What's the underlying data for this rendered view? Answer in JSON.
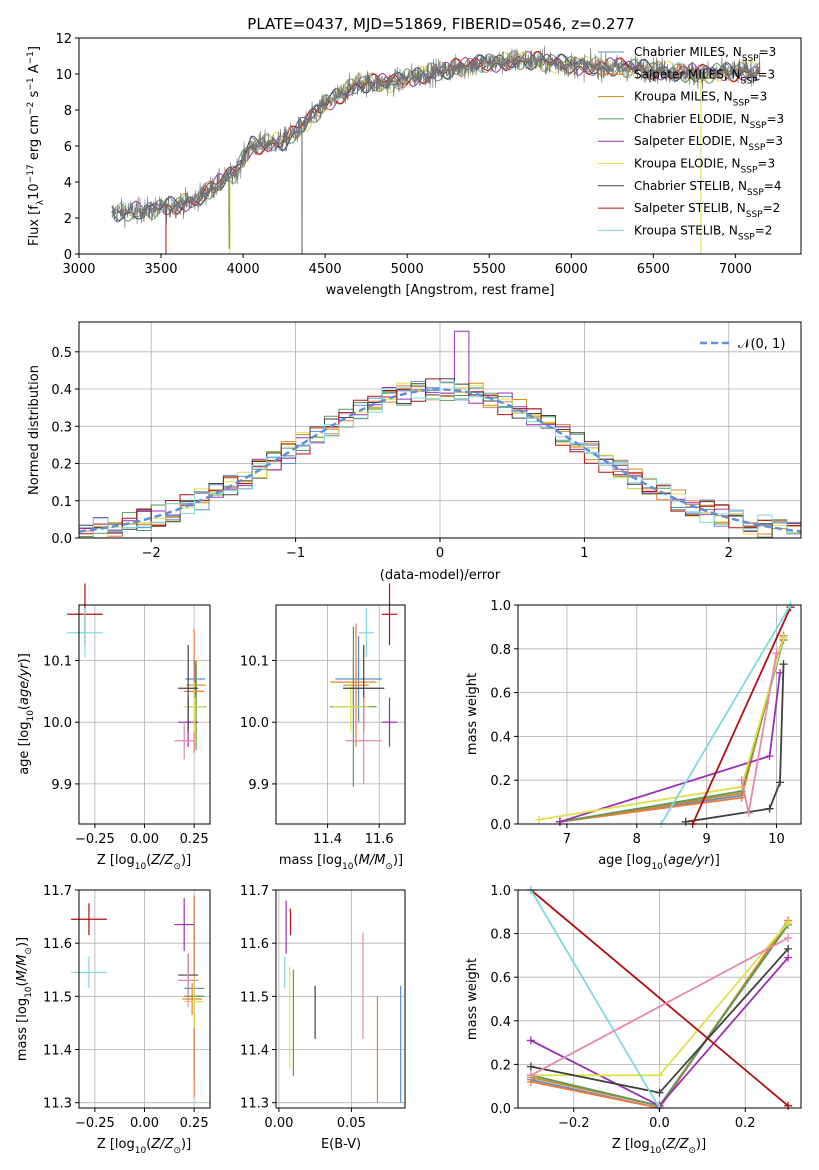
{
  "title": "PLATE=0437, MJD=51869, FIBERID=0546, z=0.277",
  "colors": {
    "chabrier_miles": "#5b8fd6",
    "salpeter_miles": "#ef7a3a",
    "kroupa_miles": "#d88b1d",
    "chabrier_elodie": "#5a9a5a",
    "salpeter_elodie": "#9a2fb5",
    "kroupa_elodie": "#e0e04a",
    "chabrier_stelib": "#404040",
    "salpeter_stelib": "#b01010",
    "kroupa_stelib": "#80d8e0",
    "extra_pink": "#e888b0",
    "extra_lime": "#b8e060",
    "extra_orange": "#e07020",
    "normal": "#5f8fd8"
  },
  "legend": [
    {
      "label": "Chabrier MILES, N",
      "sub": "SSP",
      "suffix": "=3",
      "color": "#5b8fd6"
    },
    {
      "label": "Salpeter MILES, N",
      "sub": "SSP",
      "suffix": "=3",
      "color": "#ef7a3a"
    },
    {
      "label": "Kroupa MILES, N",
      "sub": "SSP",
      "suffix": "=3",
      "color": "#d88b1d"
    },
    {
      "label": "Chabrier ELODIE, N",
      "sub": "SSP",
      "suffix": "=3",
      "color": "#5a9a5a"
    },
    {
      "label": "Salpeter ELODIE, N",
      "sub": "SSP",
      "suffix": "=3",
      "color": "#9a2fb5"
    },
    {
      "label": "Kroupa ELODIE, N",
      "sub": "SSP",
      "suffix": "=3",
      "color": "#e0e04a"
    },
    {
      "label": "Chabrier STELIB, N",
      "sub": "SSP",
      "suffix": "=4",
      "color": "#404040"
    },
    {
      "label": "Salpeter STELIB, N",
      "sub": "SSP",
      "suffix": "=2",
      "color": "#b01010"
    },
    {
      "label": "Kroupa STELIB, N",
      "sub": "SSP",
      "suffix": "=2",
      "color": "#80d8e0"
    }
  ],
  "hist_legend": "𝒩(0, 1)",
  "chart_data": [
    {
      "type": "line",
      "xlabel": "wavelength [Angstrom, rest frame]",
      "ylabel": "Flux [f_λ 10^-17 erg cm^-2 s^-1 A^-1]",
      "xlim": [
        3000,
        7400
      ],
      "ylim": [
        0,
        12
      ],
      "xticks": [
        "3000",
        "3500",
        "4000",
        "4500",
        "5000",
        "5500",
        "6000",
        "6500",
        "7000"
      ],
      "yticks": [
        "0",
        "2",
        "4",
        "6",
        "8",
        "10",
        "12"
      ],
      "spectrum_trend": [
        [
          3200,
          2.3
        ],
        [
          3500,
          2.5
        ],
        [
          3700,
          3
        ],
        [
          3950,
          4.5
        ],
        [
          4050,
          6
        ],
        [
          4250,
          6.3
        ],
        [
          4350,
          7
        ],
        [
          4500,
          8.3
        ],
        [
          4700,
          9.5
        ],
        [
          4900,
          9.5
        ],
        [
          5100,
          10
        ],
        [
          5400,
          10.5
        ],
        [
          5700,
          10.8
        ],
        [
          6000,
          10.5
        ],
        [
          6400,
          10.3
        ],
        [
          6800,
          10
        ],
        [
          7150,
          10.2
        ]
      ]
    },
    {
      "type": "line",
      "xlabel": "(data-model)/error",
      "ylabel": "Normed distribution",
      "xlim": [
        -2.5,
        2.5
      ],
      "ylim": [
        0,
        0.58
      ],
      "xticks": [
        "−2",
        "−1",
        "0",
        "1",
        "2"
      ],
      "yticks": [
        "0.0",
        "0.1",
        "0.2",
        "0.3",
        "0.4",
        "0.5"
      ],
      "normal": {
        "mu": 0,
        "sigma": 1
      }
    },
    {
      "type": "scatter",
      "xlabel": "Z [log10(Z/Z⊙)]",
      "ylabel": "age [log10(age/yr)]",
      "xlim": [
        -0.33,
        0.33
      ],
      "ylim": [
        9.835,
        10.19
      ],
      "xticks": [
        "−0.25",
        "0.00",
        "0.25"
      ],
      "yticks": [
        "9.9",
        "10.0",
        "10.1"
      ],
      "points": [
        {
          "x": 0.255,
          "y": 10.07,
          "color": "#5b8fd6"
        },
        {
          "x": 0.25,
          "y": 10.05,
          "color": "#ef7a3a"
        },
        {
          "x": 0.26,
          "y": 10.06,
          "color": "#d88b1d"
        },
        {
          "x": 0.26,
          "y": 10.025,
          "color": "#5a9a5a"
        },
        {
          "x": 0.22,
          "y": 10.0,
          "color": "#9a2fb5"
        },
        {
          "x": 0.25,
          "y": 10.025,
          "color": "#e0e04a"
        },
        {
          "x": 0.22,
          "y": 10.055,
          "color": "#404040"
        },
        {
          "x": -0.3,
          "y": 10.175,
          "color": "#b01010"
        },
        {
          "x": -0.3,
          "y": 10.145,
          "color": "#80d8e0"
        },
        {
          "x": 0.2,
          "y": 9.97,
          "color": "#e888b0"
        }
      ]
    },
    {
      "type": "scatter",
      "xlabel": "mass [log10(M/M⊙)]",
      "ylabel": "",
      "xlim": [
        11.2,
        11.7
      ],
      "ylim": [
        9.835,
        10.19
      ],
      "xticks": [
        "11.4",
        "11.6"
      ],
      "yticks": [
        "9.9",
        "10.0",
        "10.1"
      ],
      "points": [
        {
          "x": 11.52,
          "y": 10.07,
          "color": "#5b8fd6"
        },
        {
          "x": 11.51,
          "y": 10.06,
          "color": "#ef7a3a"
        },
        {
          "x": 11.5,
          "y": 10.065,
          "color": "#d88b1d"
        },
        {
          "x": 11.5,
          "y": 10.025,
          "color": "#5a9a5a"
        },
        {
          "x": 11.64,
          "y": 10.0,
          "color": "#9a2fb5"
        },
        {
          "x": 11.49,
          "y": 10.025,
          "color": "#e0e04a"
        },
        {
          "x": 11.54,
          "y": 10.055,
          "color": "#404040"
        },
        {
          "x": 11.64,
          "y": 10.175,
          "color": "#b01010"
        },
        {
          "x": 11.55,
          "y": 10.145,
          "color": "#80d8e0"
        },
        {
          "x": 11.54,
          "y": 9.97,
          "color": "#e888b0"
        }
      ]
    },
    {
      "type": "line",
      "xlabel": "age [log10(age/yr)]",
      "ylabel": "mass weight",
      "xlim": [
        6.3,
        10.35
      ],
      "ylim": [
        0,
        1.0
      ],
      "xticks": [
        "7",
        "8",
        "9",
        "10"
      ],
      "yticks": [
        "0.0",
        "0.2",
        "0.4",
        "0.6",
        "0.8",
        "1.0"
      ],
      "series": [
        {
          "color": "#5b8fd6",
          "points": [
            [
              6.9,
              0.01
            ],
            [
              9.5,
              0.13
            ],
            [
              10.1,
              0.86
            ]
          ]
        },
        {
          "color": "#ef7a3a",
          "points": [
            [
              6.9,
              0.01
            ],
            [
              9.5,
              0.12
            ],
            [
              10.1,
              0.86
            ]
          ]
        },
        {
          "color": "#d88b1d",
          "points": [
            [
              6.9,
              0.01
            ],
            [
              9.5,
              0.14
            ],
            [
              10.1,
              0.85
            ]
          ]
        },
        {
          "color": "#5a9a5a",
          "points": [
            [
              6.9,
              0.01
            ],
            [
              9.5,
              0.15
            ],
            [
              10.1,
              0.84
            ]
          ]
        },
        {
          "color": "#9a2fb5",
          "points": [
            [
              6.9,
              0.01
            ],
            [
              9.9,
              0.31
            ],
            [
              10.05,
              0.69
            ]
          ]
        },
        {
          "color": "#e0e04a",
          "points": [
            [
              6.6,
              0.02
            ],
            [
              9.5,
              0.17
            ],
            [
              10.1,
              0.85
            ]
          ]
        },
        {
          "color": "#404040",
          "points": [
            [
              8.7,
              0.01
            ],
            [
              9.9,
              0.07
            ],
            [
              10.05,
              0.19
            ],
            [
              10.1,
              0.73
            ]
          ]
        },
        {
          "color": "#b01010",
          "points": [
            [
              8.8,
              0.0
            ],
            [
              10.2,
              0.99
            ]
          ]
        },
        {
          "color": "#80d8e0",
          "points": [
            [
              8.35,
              0.0
            ],
            [
              10.2,
              1.0
            ]
          ]
        },
        {
          "color": "#e888b0",
          "points": [
            [
              9.5,
              0.2
            ],
            [
              9.6,
              0.05
            ],
            [
              10.0,
              0.78
            ]
          ]
        }
      ]
    },
    {
      "type": "scatter",
      "xlabel": "Z [log10(Z/Z⊙)]",
      "ylabel": "mass [log10(M/M⊙)]",
      "xlim": [
        -0.33,
        0.33
      ],
      "ylim": [
        11.29,
        11.7
      ],
      "xticks": [
        "−0.25",
        "0.00",
        "0.25"
      ],
      "yticks": [
        "11.3",
        "11.4",
        "11.5",
        "11.6",
        "11.7"
      ],
      "points": [
        {
          "x": 0.25,
          "y": 11.515,
          "color": "#5b8fd6"
        },
        {
          "x": 0.25,
          "y": 11.5,
          "color": "#ef7a3a"
        },
        {
          "x": 0.24,
          "y": 11.495,
          "color": "#d88b1d"
        },
        {
          "x": 0.25,
          "y": 11.5,
          "color": "#5a9a5a"
        },
        {
          "x": 0.2,
          "y": 11.635,
          "color": "#9a2fb5"
        },
        {
          "x": 0.25,
          "y": 11.49,
          "color": "#e0e04a"
        },
        {
          "x": 0.22,
          "y": 11.54,
          "color": "#404040"
        },
        {
          "x": -0.28,
          "y": 11.645,
          "color": "#b01010"
        },
        {
          "x": -0.28,
          "y": 11.545,
          "color": "#80d8e0"
        },
        {
          "x": 0.22,
          "y": 11.53,
          "color": "#e888b0"
        }
      ]
    },
    {
      "type": "scatter",
      "xlabel": "E(B-V)",
      "ylabel": "",
      "xlim": [
        -0.002,
        0.087
      ],
      "ylim": [
        11.29,
        11.7
      ],
      "xticks": [
        "0.00",
        "0.05"
      ],
      "yticks": [
        "11.3",
        "11.4",
        "11.5",
        "11.6",
        "11.7"
      ],
      "points": [
        {
          "x": 0.084,
          "y": 11.41,
          "color": "#5b8fd6"
        },
        {
          "x": 0.068,
          "y": 11.4,
          "color": "#ef7a3a"
        },
        {
          "x": 0.005,
          "y": 11.63,
          "color": "#9a2fb5"
        },
        {
          "x": 0.0075,
          "y": 11.46,
          "color": "#e0e04a"
        },
        {
          "x": 0.01,
          "y": 11.45,
          "color": "#5a9a5a"
        },
        {
          "x": 0.025,
          "y": 11.47,
          "color": "#404040"
        },
        {
          "x": 0.008,
          "y": 11.64,
          "color": "#b01010"
        },
        {
          "x": 0.004,
          "y": 11.545,
          "color": "#80d8e0"
        },
        {
          "x": 0.058,
          "y": 11.52,
          "color": "#e888b0"
        }
      ]
    },
    {
      "type": "line",
      "xlabel": "Z [log10(Z/Z⊙)]",
      "ylabel": "mass weight",
      "xlim": [
        -0.33,
        0.33
      ],
      "ylim": [
        0,
        1.0
      ],
      "xticks": [
        "−0.2",
        "0.0",
        "0.2"
      ],
      "yticks": [
        "0.0",
        "0.2",
        "0.4",
        "0.6",
        "0.8",
        "1.0"
      ],
      "series": [
        {
          "color": "#5b8fd6",
          "points": [
            [
              -0.3,
              0.13
            ],
            [
              0.0,
              0.0
            ],
            [
              0.3,
              0.86
            ]
          ]
        },
        {
          "color": "#ef7a3a",
          "points": [
            [
              -0.3,
              0.12
            ],
            [
              0.0,
              0.0
            ],
            [
              0.3,
              0.86
            ]
          ]
        },
        {
          "color": "#d88b1d",
          "points": [
            [
              -0.3,
              0.14
            ],
            [
              0.0,
              0.01
            ],
            [
              0.3,
              0.85
            ]
          ]
        },
        {
          "color": "#5a9a5a",
          "points": [
            [
              -0.3,
              0.15
            ],
            [
              0.0,
              0.01
            ],
            [
              0.3,
              0.84
            ]
          ]
        },
        {
          "color": "#9a2fb5",
          "points": [
            [
              -0.3,
              0.31
            ],
            [
              0.0,
              0.01
            ],
            [
              0.3,
              0.69
            ]
          ]
        },
        {
          "color": "#e0e04a",
          "points": [
            [
              -0.3,
              0.15
            ],
            [
              0.0,
              0.15
            ],
            [
              0.3,
              0.85
            ]
          ]
        },
        {
          "color": "#404040",
          "points": [
            [
              -0.3,
              0.19
            ],
            [
              0.0,
              0.07
            ],
            [
              0.3,
              0.73
            ]
          ]
        },
        {
          "color": "#b01010",
          "points": [
            [
              -0.3,
              1.0
            ],
            [
              0.3,
              0.01
            ]
          ]
        },
        {
          "color": "#80d8e0",
          "points": [
            [
              -0.3,
              1.0
            ],
            [
              0.0,
              0.0
            ]
          ]
        },
        {
          "color": "#e888b0",
          "points": [
            [
              -0.3,
              0.15
            ],
            [
              0.3,
              0.78
            ]
          ]
        }
      ]
    }
  ]
}
